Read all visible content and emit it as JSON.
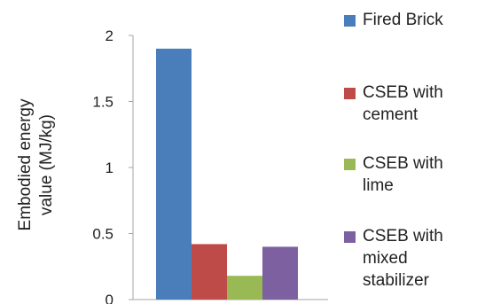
{
  "chart_data": {
    "type": "bar",
    "title": "",
    "xlabel": "",
    "ylabel": "Embodied energy value (MJ/kg)",
    "ylabel_lines": [
      "Embodied energy",
      "value (MJ/kg)"
    ],
    "ylim": [
      0,
      2
    ],
    "yticks": [
      "0",
      "0.5",
      "1",
      "1.5",
      "2"
    ],
    "ytick_values": [
      0,
      0.5,
      1,
      1.5,
      2
    ],
    "grid": false,
    "legend_position": "right",
    "series": [
      {
        "name": "Fired Brick",
        "legend_label": "Fired Brick",
        "values": [
          1.9
        ],
        "color": "#4a7ebb"
      },
      {
        "name": "CSEB with cement",
        "legend_label": "CSEB with\ncement",
        "values": [
          0.42
        ],
        "color": "#be4b48"
      },
      {
        "name": "CSEB with lime",
        "legend_label": "CSEB with\nlime",
        "values": [
          0.18
        ],
        "color": "#98b954"
      },
      {
        "name": "CSEB with mixed stabilizer",
        "legend_label": "CSEB with\nmixed\nstabilizer",
        "values": [
          0.4
        ],
        "color": "#7d60a0"
      }
    ]
  }
}
